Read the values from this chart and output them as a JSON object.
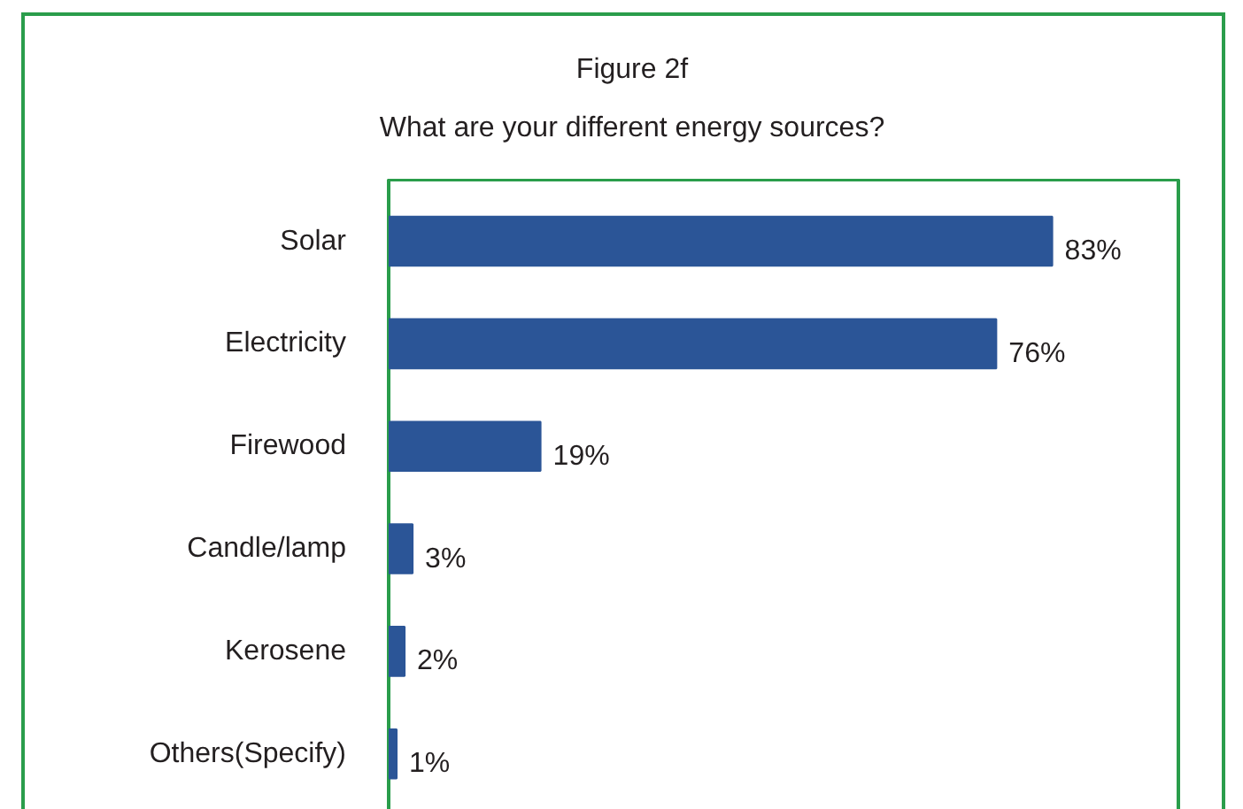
{
  "chart_data": {
    "type": "bar",
    "orientation": "horizontal",
    "title": "Figure 2f",
    "subtitle": "What are your different energy sources?",
    "categories": [
      "Solar",
      "Electricity",
      "Firewood",
      "Candle/lamp",
      "Kerosene",
      "Others(Specify)"
    ],
    "values": [
      83,
      76,
      19,
      3,
      2,
      1
    ],
    "color": "#2b5597",
    "value_labels": [
      "83%",
      "76%",
      "19%",
      "3%",
      "2%",
      "1%"
    ],
    "grid": false
  }
}
